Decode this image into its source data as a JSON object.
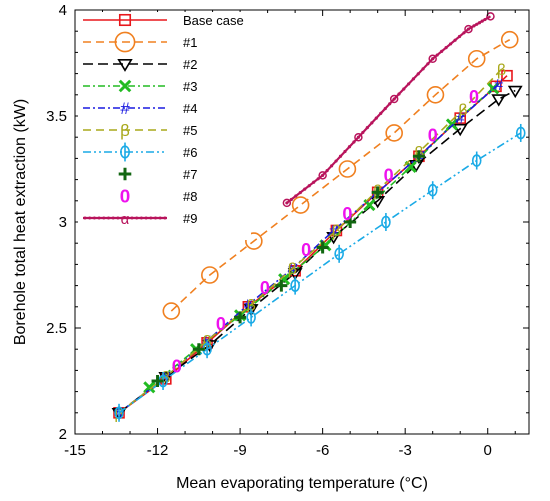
{
  "colors": {
    "axis": "#000000",
    "background": "#ffffff"
  },
  "chart_data": {
    "type": "line",
    "title": "",
    "xlabel": "Mean evaporating temperature (°C)",
    "ylabel": "Borehole total heat extraction (kW)",
    "xlim": [
      -15,
      1.5
    ],
    "ylim": [
      2,
      4
    ],
    "xticks": [
      -15,
      -12,
      -9,
      -6,
      -3,
      0
    ],
    "yticks": [
      2,
      2.5,
      3,
      3.5,
      4
    ],
    "xtick_labels": [
      "-15",
      "-12",
      "-9",
      "-6",
      "-3",
      "0"
    ],
    "ytick_labels": [
      "2",
      "2.5",
      "3",
      "3.5",
      "4"
    ],
    "grid": false,
    "legend_position": "top-left",
    "series": [
      {
        "name": "Base case",
        "color": "#e8161b",
        "dash": "solid",
        "marker": "square",
        "x": [
          -13.4,
          -11.7,
          -10.2,
          -8.7,
          -7.0,
          -5.5,
          -4.0,
          -2.5,
          -1.0,
          0.3,
          0.7
        ],
        "y": [
          2.1,
          2.26,
          2.43,
          2.6,
          2.77,
          2.96,
          3.14,
          3.31,
          3.49,
          3.64,
          3.69
        ]
      },
      {
        "name": "#1",
        "color": "#f08020",
        "dash": "8,5",
        "marker": "circle",
        "x": [
          -11.5,
          -10.1,
          -8.5,
          -6.8,
          -5.1,
          -3.4,
          -1.9,
          -0.4,
          0.8
        ],
        "y": [
          2.58,
          2.75,
          2.91,
          3.08,
          3.25,
          3.42,
          3.6,
          3.77,
          3.86
        ]
      },
      {
        "name": "#2",
        "color": "#000000",
        "dash": "10,5",
        "marker": "triangle-down",
        "x": [
          -13.4,
          -11.7,
          -10.1,
          -8.6,
          -7.0,
          -5.6,
          -4.0,
          -2.6,
          -1.0,
          0.4,
          1.0
        ],
        "y": [
          2.1,
          2.27,
          2.42,
          2.59,
          2.76,
          2.93,
          3.1,
          3.27,
          3.44,
          3.58,
          3.62
        ]
      },
      {
        "name": "#3",
        "color": "#22bb22",
        "dash": "7,3,2,3",
        "marker": "x",
        "x": [
          -12.3,
          -10.6,
          -9.0,
          -7.4,
          -5.9,
          -4.3,
          -2.8,
          -1.3,
          0.2
        ],
        "y": [
          2.22,
          2.4,
          2.56,
          2.73,
          2.89,
          3.08,
          3.26,
          3.46,
          3.63
        ]
      },
      {
        "name": "#4",
        "color": "#1a1ae0",
        "dash": "7,3,2,3",
        "marker": "hash",
        "x": [
          -13.4,
          -11.7,
          -10.2,
          -8.7,
          -7.1,
          -5.6,
          -4.0,
          -2.5,
          -1.0,
          0.4
        ],
        "y": [
          2.1,
          2.27,
          2.44,
          2.61,
          2.78,
          2.96,
          3.14,
          3.31,
          3.49,
          3.65
        ]
      },
      {
        "name": "#5",
        "color": "#a8a81a",
        "dash": "8,5",
        "marker": "beta",
        "x": [
          -13.4,
          -11.7,
          -10.2,
          -8.6,
          -7.1,
          -5.5,
          -4.0,
          -2.5,
          -0.9,
          0.5
        ],
        "y": [
          2.1,
          2.27,
          2.44,
          2.61,
          2.78,
          2.96,
          3.15,
          3.33,
          3.53,
          3.72
        ]
      },
      {
        "name": "#6",
        "color": "#1aaae6",
        "dash": "8,3,2,3,2,3",
        "marker": "phi",
        "x": [
          -13.4,
          -11.8,
          -10.2,
          -8.6,
          -7.0,
          -5.4,
          -3.7,
          -2.0,
          -0.4,
          1.2
        ],
        "y": [
          2.1,
          2.25,
          2.4,
          2.55,
          2.7,
          2.85,
          3.0,
          3.15,
          3.29,
          3.42
        ]
      },
      {
        "name": "#7",
        "color": "#116611",
        "dash": "none",
        "marker": "plus",
        "x": [
          -12.0,
          -10.5,
          -9.0,
          -7.5,
          -6.0,
          -5.0,
          -4.0,
          -2.5
        ],
        "y": [
          2.25,
          2.4,
          2.55,
          2.7,
          2.88,
          3.0,
          3.14,
          3.31
        ]
      },
      {
        "name": "#8",
        "color": "#ee11ee",
        "dash": "none",
        "marker": "zero",
        "x": [
          -11.3,
          -9.7,
          -8.1,
          -6.6,
          -5.1,
          -3.6,
          -2.0,
          -0.5
        ],
        "y": [
          2.32,
          2.52,
          2.69,
          2.87,
          3.04,
          3.22,
          3.41,
          3.59
        ]
      },
      {
        "name": "#9",
        "color": "#b8145c",
        "dash": "solid",
        "marker": "alpha",
        "x": [
          -7.3,
          -6.0,
          -4.7,
          -3.4,
          -2.0,
          -0.7,
          0.1
        ],
        "y": [
          3.09,
          3.22,
          3.4,
          3.58,
          3.77,
          3.91,
          3.97
        ]
      }
    ]
  }
}
